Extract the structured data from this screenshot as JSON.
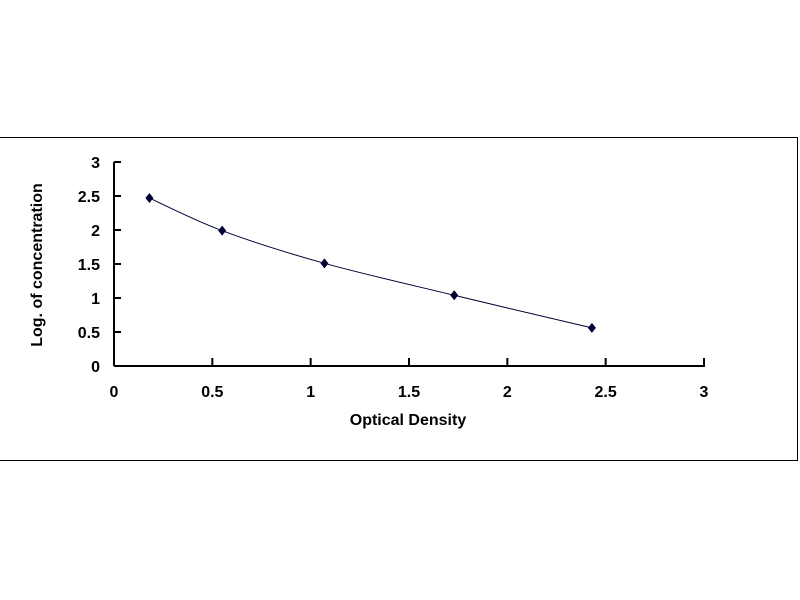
{
  "chart_data": {
    "type": "scatter",
    "title": "",
    "xlabel": "Optical Density",
    "ylabel": "Log. of concentration",
    "xlim": [
      0,
      3
    ],
    "ylim": [
      0,
      3
    ],
    "xticks": [
      "0",
      "0.5",
      "1",
      "1.5",
      "2",
      "2.5",
      "3"
    ],
    "yticks": [
      "0",
      "0.5",
      "1",
      "1.5",
      "2",
      "2.5",
      "3"
    ],
    "grid": false,
    "series": [
      {
        "x": [
          0.18,
          0.55,
          1.07,
          1.73,
          2.43
        ],
        "y": [
          2.47,
          1.99,
          1.51,
          1.04,
          0.56
        ],
        "color": "#000033",
        "marker": "diamond",
        "line": "smooth"
      }
    ]
  }
}
